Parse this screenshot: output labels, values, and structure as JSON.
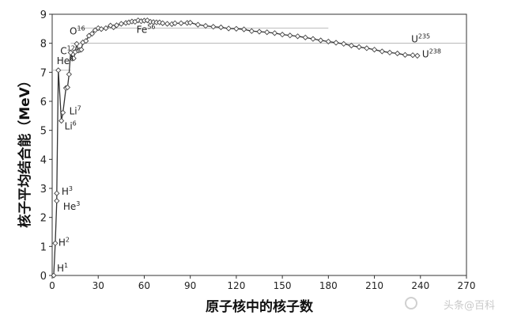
{
  "chart_data": {
    "type": "line",
    "xlabel": "原子核中的核子数",
    "ylabel": "核子平均结合能（MeV）",
    "xlim": [
      0,
      270
    ],
    "ylim": [
      0,
      9
    ],
    "xticks": [
      0,
      30,
      60,
      90,
      120,
      150,
      180,
      210,
      240,
      270
    ],
    "yticks": [
      0,
      1,
      2,
      3,
      4,
      5,
      6,
      7,
      8,
      9
    ],
    "grid": false,
    "series": [
      {
        "x": [
          1,
          2,
          3,
          3,
          4,
          6,
          7,
          9,
          10,
          11,
          12,
          13,
          14,
          15,
          16,
          17,
          18,
          19,
          20,
          22,
          24,
          26,
          28,
          30,
          32,
          35,
          38,
          40,
          42,
          45,
          48,
          50,
          52,
          54,
          56,
          58,
          60,
          62,
          64,
          66,
          68,
          70,
          72,
          75,
          78,
          80,
          84,
          88,
          90,
          95,
          100,
          105,
          110,
          115,
          120,
          125,
          130,
          135,
          140,
          145,
          150,
          155,
          160,
          165,
          170,
          175,
          180,
          185,
          190,
          195,
          200,
          205,
          210,
          215,
          220,
          225,
          230,
          235,
          238
        ],
        "y": [
          0.0,
          1.11,
          2.57,
          2.83,
          7.07,
          5.33,
          5.61,
          6.46,
          6.48,
          6.93,
          7.68,
          7.47,
          7.48,
          7.7,
          7.98,
          7.75,
          7.77,
          7.78,
          8.03,
          8.08,
          8.26,
          8.33,
          8.45,
          8.52,
          8.49,
          8.52,
          8.61,
          8.55,
          8.62,
          8.67,
          8.7,
          8.72,
          8.75,
          8.74,
          8.79,
          8.76,
          8.78,
          8.79,
          8.74,
          8.73,
          8.72,
          8.72,
          8.69,
          8.67,
          8.66,
          8.69,
          8.69,
          8.7,
          8.71,
          8.64,
          8.6,
          8.57,
          8.55,
          8.51,
          8.5,
          8.48,
          8.42,
          8.4,
          8.38,
          8.35,
          8.3,
          8.27,
          8.24,
          8.2,
          8.15,
          8.1,
          8.06,
          8.02,
          7.98,
          7.92,
          7.87,
          7.83,
          7.78,
          7.72,
          7.68,
          7.65,
          7.6,
          7.59,
          7.57
        ]
      }
    ],
    "annotations": [
      {
        "text": "H",
        "sup": "1",
        "x": 1,
        "y": 0.0
      },
      {
        "text": "H",
        "sup": "2",
        "x": 2,
        "y": 1.11
      },
      {
        "text": "H",
        "sup": "3",
        "x": 3,
        "y": 2.83
      },
      {
        "text": "He",
        "sup": "3",
        "x": 3,
        "y": 2.57
      },
      {
        "text": "He",
        "sup": "4",
        "x": 4,
        "y": 7.07
      },
      {
        "text": "Li",
        "sup": "6",
        "x": 6,
        "y": 5.33
      },
      {
        "text": "Li",
        "sup": "7",
        "x": 7,
        "y": 5.61
      },
      {
        "text": "C",
        "sup": "12",
        "x": 12,
        "y": 7.68
      },
      {
        "text": "O",
        "sup": "16",
        "x": 16,
        "y": 7.98
      },
      {
        "text": "Fe",
        "sup": "56",
        "x": 56,
        "y": 8.79
      },
      {
        "text": "U",
        "sup": "235",
        "x": 235,
        "y": 7.59
      },
      {
        "text": "U",
        "sup": "238",
        "x": 238,
        "y": 7.57
      }
    ]
  },
  "watermark": "头条@百科"
}
